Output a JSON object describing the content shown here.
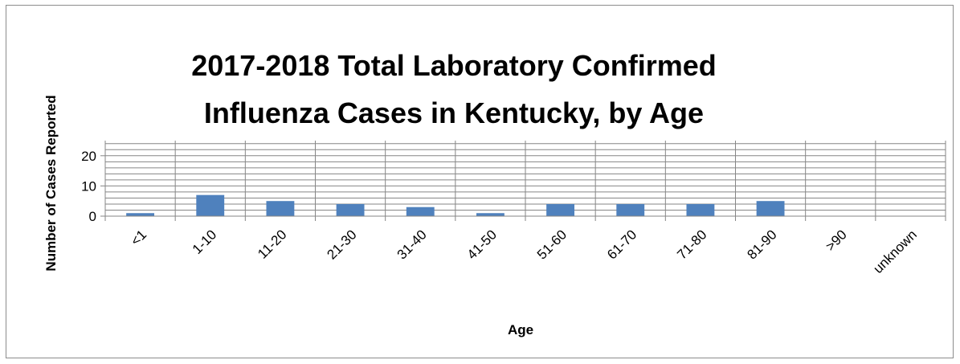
{
  "chart_data": {
    "type": "bar",
    "title_lines": [
      "2017-2018 Total Laboratory Confirmed",
      "Influenza Cases in Kentucky, by Age"
    ],
    "xlabel": "Age",
    "ylabel": "Number of Cases Reported",
    "categories": [
      "<1",
      "1-10",
      "11-20",
      "21-30",
      "31-40",
      "41-50",
      "51-60",
      "61-70",
      "71-80",
      "81-90",
      ">90",
      "unknown"
    ],
    "values": [
      1,
      7,
      5,
      4,
      3,
      1,
      4,
      4,
      4,
      5,
      0,
      0
    ],
    "ylim": [
      0,
      25
    ],
    "yticks": [
      "0",
      "10",
      "20"
    ],
    "ytick_values": [
      0,
      10,
      20
    ],
    "minor_grid_step": 2,
    "grid": true,
    "legend": "none",
    "colors": {
      "bar": "#4F81BD",
      "grid": "#868686",
      "axis": "#868686",
      "frame": "#8c8c8c"
    }
  }
}
